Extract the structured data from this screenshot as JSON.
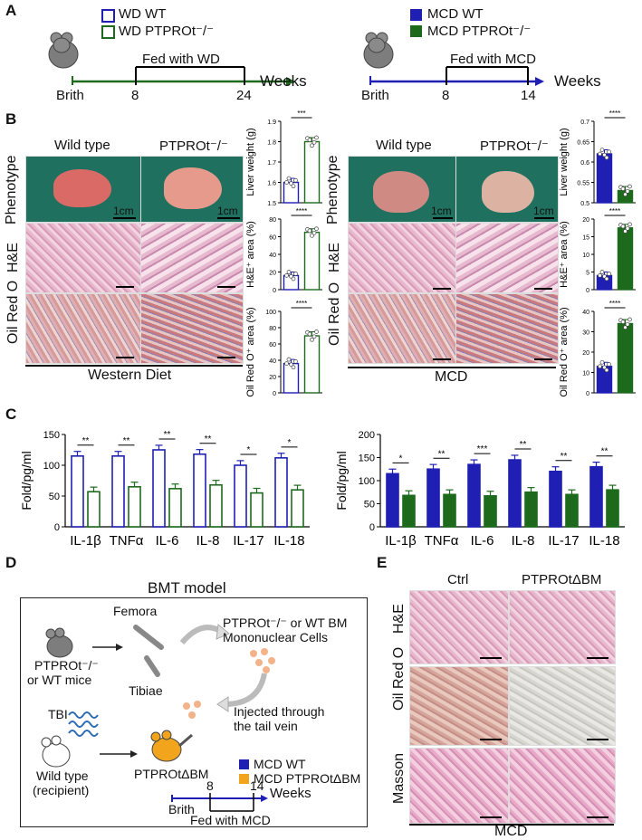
{
  "panels": {
    "A": "A",
    "B": "B",
    "C": "C",
    "D": "D",
    "E": "E"
  },
  "panelA": {
    "left": {
      "legend": [
        "WD WT",
        "WD PTPROt⁻/⁻"
      ],
      "timeline_label": "Fed with WD",
      "ticks": [
        "Brith",
        "8",
        "24"
      ],
      "unit": "Weeks"
    },
    "right": {
      "legend": [
        "MCD WT",
        "MCD PTPROt⁻/⁻"
      ],
      "timeline_label": "Fed with MCD",
      "ticks": [
        "Brith",
        "8",
        "14"
      ],
      "unit": "Weeks"
    }
  },
  "panelB": {
    "left": {
      "col_headers": [
        "Wild type",
        "PTPROt⁻/⁻"
      ],
      "row_labels": [
        "Phenotype",
        "H&E",
        "Oil Red O"
      ],
      "scale": "1cm",
      "footer": "Western Diet"
    },
    "right": {
      "col_headers": [
        "Wild type",
        "PTPROt⁻/⁻"
      ],
      "row_labels": [
        "Phenotype",
        "H&E",
        "Oil Red O"
      ],
      "scale": "1cm",
      "footer": "MCD"
    }
  },
  "panelD": {
    "title": "BMT model",
    "femora": "Femora",
    "tibiae": "Tibiae",
    "mice_label": [
      "PTPROt⁻/⁻",
      "or WT mice"
    ],
    "cells_label": [
      "PTPROt⁻/⁻ or WT BM",
      "Mononuclear Cells"
    ],
    "tbi": "TBI",
    "injected": [
      "Injected through",
      "the tail vein"
    ],
    "recipient": [
      "Wild type",
      "(recipient)"
    ],
    "ptpro_bm": "PTPROtΔBM",
    "legend": [
      "MCD WT",
      "MCD PTPROtΔBM"
    ],
    "ticks": [
      "Brith",
      "8",
      "14"
    ],
    "unit": "Weeks",
    "fed": "Fed with MCD"
  },
  "panelE": {
    "col_headers": [
      "Ctrl",
      "PTPROtΔBM"
    ],
    "row_labels": [
      "H&E",
      "Oil Red O",
      "Masson"
    ],
    "footer": "MCD"
  },
  "colors": {
    "wt": "#1f1fb4",
    "ko": "#1d6a1d",
    "bmko": "#f2a51c",
    "pheno_bg": "#20705f"
  },
  "chart_data": [
    {
      "id": "B-left-liver",
      "type": "bar",
      "ylabel": "Liver weight (g)",
      "categories": [
        "WT",
        "PTPROt-/-"
      ],
      "values": [
        1.6,
        1.8
      ],
      "ylim": [
        1.5,
        1.9
      ],
      "yticks": [
        1.5,
        1.6,
        1.7,
        1.8,
        1.9
      ],
      "significance": "***",
      "style": "open"
    },
    {
      "id": "B-left-he",
      "type": "bar",
      "ylabel": "H&E⁺ area (%)",
      "categories": [
        "WT",
        "PTPROt-/-"
      ],
      "values": [
        16,
        65
      ],
      "ylim": [
        0,
        80
      ],
      "yticks": [
        0,
        20,
        40,
        60,
        80
      ],
      "significance": "****",
      "style": "open"
    },
    {
      "id": "B-left-oil",
      "type": "bar",
      "ylabel": "Oil Red O⁺ area (%)",
      "categories": [
        "WT",
        "PTPROt-/-"
      ],
      "values": [
        36,
        70
      ],
      "ylim": [
        0,
        100
      ],
      "yticks": [
        0,
        20,
        40,
        60,
        80,
        100
      ],
      "significance": "****",
      "style": "open"
    },
    {
      "id": "B-right-liver",
      "type": "bar",
      "ylabel": "Liver weight (g)",
      "categories": [
        "WT",
        "PTPROt-/-"
      ],
      "values": [
        0.62,
        0.53
      ],
      "ylim": [
        0.5,
        0.7
      ],
      "yticks": [
        0.5,
        0.55,
        0.6,
        0.65,
        0.7
      ],
      "significance": "****",
      "style": "filled"
    },
    {
      "id": "B-right-he",
      "type": "bar",
      "ylabel": "H&E⁺ area (%)",
      "categories": [
        "WT",
        "PTPROt-/-"
      ],
      "values": [
        4,
        17.5
      ],
      "ylim": [
        0,
        20
      ],
      "yticks": [
        0,
        5,
        10,
        15,
        20
      ],
      "significance": "****",
      "style": "filled"
    },
    {
      "id": "B-right-oil",
      "type": "bar",
      "ylabel": "Oil Red O⁺ area (%)",
      "categories": [
        "WT",
        "PTPROt-/-"
      ],
      "values": [
        13,
        34
      ],
      "ylim": [
        0,
        40
      ],
      "yticks": [
        0,
        10,
        20,
        30,
        40
      ],
      "significance": "****",
      "style": "filled"
    },
    {
      "id": "C-left",
      "type": "bar",
      "ylabel": "Fold/pg/ml",
      "categories": [
        "IL-1β",
        "TNFα",
        "IL-6",
        "IL-8",
        "IL-17",
        "IL-18"
      ],
      "series": [
        {
          "values": [
            115,
            115,
            125,
            118,
            100,
            112
          ]
        },
        {
          "values": [
            57,
            65,
            62,
            68,
            55,
            60
          ]
        }
      ],
      "ylim": [
        0,
        150
      ],
      "yticks": [
        0,
        50,
        100,
        150
      ],
      "significance": [
        "**",
        "**",
        "**",
        "**",
        "*",
        "*"
      ],
      "style": "open"
    },
    {
      "id": "C-right",
      "type": "bar",
      "ylabel": "Fold/pg/ml",
      "categories": [
        "IL-1β",
        "TNFα",
        "IL-6",
        "IL-8",
        "IL-17",
        "IL-18"
      ],
      "series": [
        {
          "values": [
            115,
            125,
            135,
            145,
            120,
            130
          ]
        },
        {
          "values": [
            68,
            70,
            67,
            75,
            70,
            80
          ]
        }
      ],
      "ylim": [
        0,
        200
      ],
      "yticks": [
        0,
        50,
        100,
        150,
        200
      ],
      "significance": [
        "*",
        "**",
        "***",
        "**",
        "**",
        "**"
      ],
      "style": "filled"
    }
  ]
}
